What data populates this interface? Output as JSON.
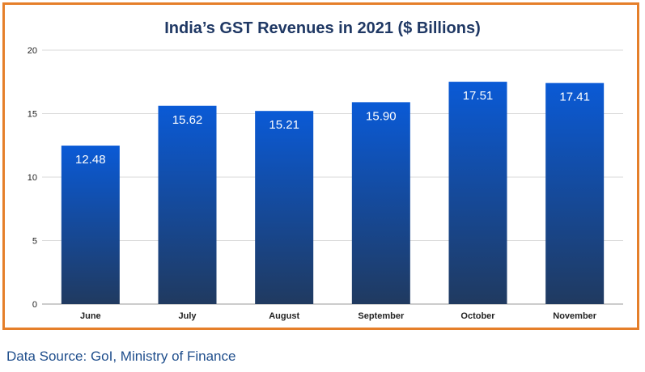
{
  "chart_data": {
    "type": "bar",
    "title": "India’s GST Revenues in 2021 ($ Billions)",
    "categories": [
      "June",
      "July",
      "August",
      "September",
      "October",
      "November"
    ],
    "values": [
      12.48,
      15.62,
      15.21,
      15.9,
      17.51,
      17.41
    ],
    "data_labels": [
      "12.48",
      "15.62",
      "15.21",
      "15.90",
      "17.51",
      "17.41"
    ],
    "ylim": [
      0,
      20
    ],
    "yticks": [
      0,
      5,
      10,
      15,
      20
    ],
    "grid": true,
    "legend": "none",
    "colors": {
      "bar_top": "#0a5ad6",
      "bar_bottom": "#203a60",
      "border": "#e57f2a",
      "title": "#1f3864"
    }
  },
  "footer": {
    "source": "Data Source: GoI, Ministry of Finance"
  }
}
